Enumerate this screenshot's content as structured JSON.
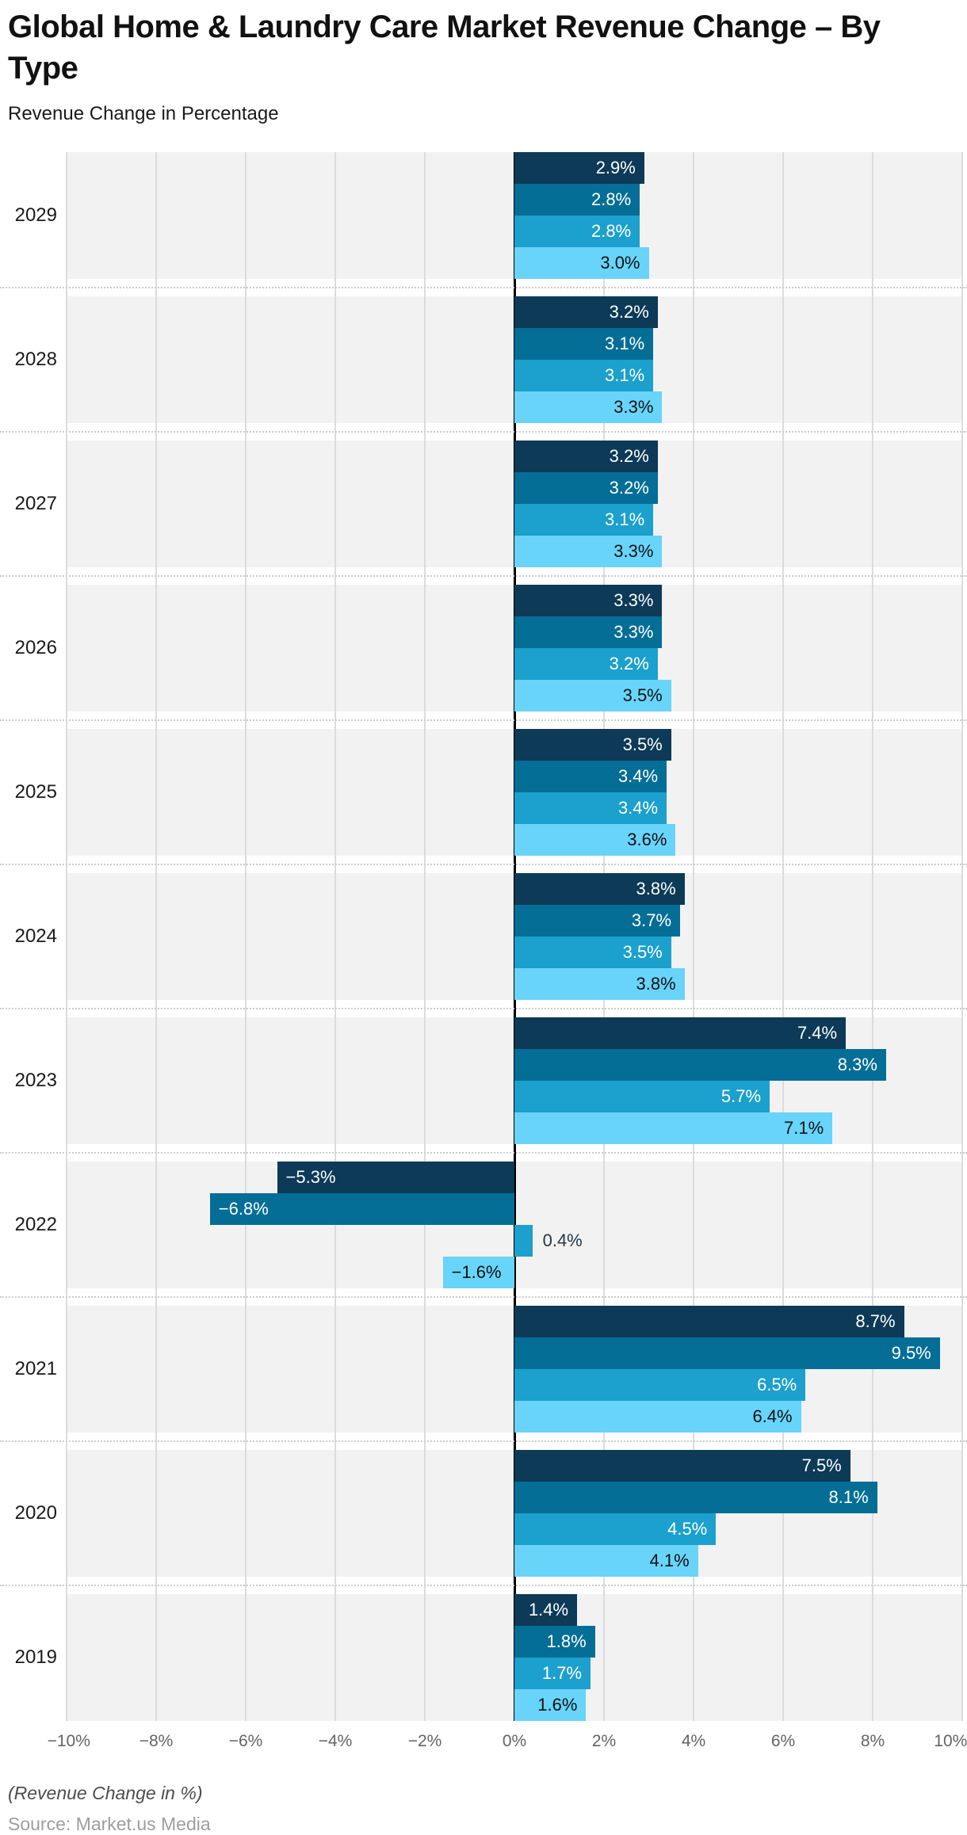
{
  "page": {
    "title": "Global Home & Laundry Care Market Revenue Change – By Type",
    "subtitle": "Revenue Change in Percentage",
    "footnote": "(Revenue Change in %)",
    "source": "Source: Market.us Media"
  },
  "chart_data": {
    "type": "bar",
    "orientation": "horizontal",
    "title": "Global Home & Laundry Care Market Revenue Change – By Type",
    "subtitle": "Revenue Change in Percentage",
    "xlabel": "Revenue Change in %",
    "categories": [
      "2029",
      "2028",
      "2027",
      "2026",
      "2025",
      "2024",
      "2023",
      "2022",
      "2021",
      "2020",
      "2019"
    ],
    "series": [
      {
        "name": "series-1",
        "color": "#0d3a57",
        "values": [
          2.9,
          3.2,
          3.2,
          3.3,
          3.5,
          3.8,
          7.4,
          -5.3,
          8.7,
          7.5,
          1.4
        ]
      },
      {
        "name": "series-2",
        "color": "#046e96",
        "values": [
          2.8,
          3.1,
          3.2,
          3.3,
          3.4,
          3.7,
          8.3,
          -6.8,
          9.5,
          8.1,
          1.8
        ]
      },
      {
        "name": "series-3",
        "color": "#1ca0cd",
        "values": [
          2.8,
          3.1,
          3.1,
          3.2,
          3.4,
          3.5,
          5.7,
          0.4,
          6.5,
          4.5,
          1.7
        ]
      },
      {
        "name": "series-4",
        "color": "#68d4fa",
        "values": [
          3.0,
          3.3,
          3.3,
          3.5,
          3.6,
          3.8,
          7.1,
          -1.6,
          6.4,
          4.1,
          1.6
        ]
      }
    ],
    "value_label_suffix": "%",
    "value_label_decimals": 1,
    "xlim": [
      -10,
      10
    ],
    "x_ticks": [
      -10,
      -8,
      -6,
      -4,
      -2,
      0,
      2,
      4,
      6,
      8,
      10
    ],
    "x_tick_labels": [
      "−10%",
      "−8%",
      "−6%",
      "−4%",
      "−2%",
      "0%",
      "2%",
      "4%",
      "6%",
      "8%",
      "10%"
    ],
    "grid": true,
    "legend": "none",
    "colors": {
      "band_background": "#f2f2f2",
      "gridline": "#dcdcdc",
      "zero_line": "#000000",
      "separator_dotted": "#cccccc",
      "label_on_dark_bar": "#ffffff",
      "label_on_light_bar": "#111111",
      "label_outside_bar": "#22384a",
      "year_label": "#1a1a1a",
      "tick_label": "#646464"
    }
  }
}
